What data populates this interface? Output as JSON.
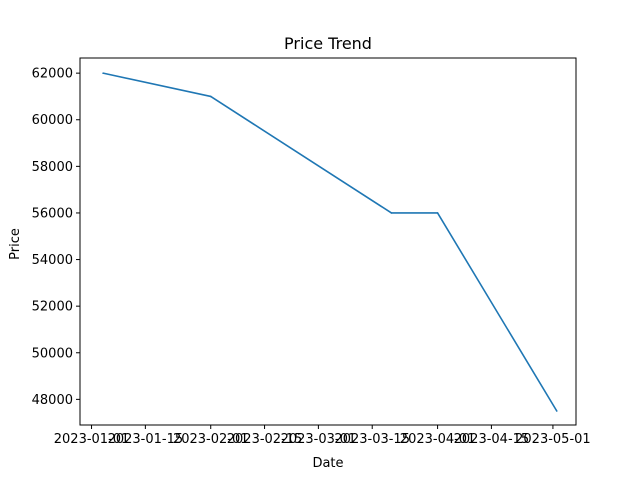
{
  "chart_data": {
    "type": "line",
    "title": "Price Trend",
    "xlabel": "Date",
    "ylabel": "Price",
    "x": [
      "2023-01-04",
      "2023-02-01",
      "2023-03-20",
      "2023-04-01",
      "2023-05-02"
    ],
    "series": [
      {
        "values": [
          62000,
          61000,
          56000,
          56000,
          47500
        ],
        "color": "#1f77b4"
      }
    ],
    "xlim": [
      "2022-12-29",
      "2023-05-07"
    ],
    "ylim": [
      46900,
      62650
    ],
    "x_ticks": [
      "2023-01-01",
      "2023-01-15",
      "2023-02-01",
      "2023-02-15",
      "2023-03-01",
      "2023-03-15",
      "2023-04-01",
      "2023-04-15",
      "2023-05-01"
    ],
    "y_ticks": [
      48000,
      50000,
      52000,
      54000,
      56000,
      58000,
      60000,
      62000
    ],
    "grid": false,
    "legend": false
  }
}
